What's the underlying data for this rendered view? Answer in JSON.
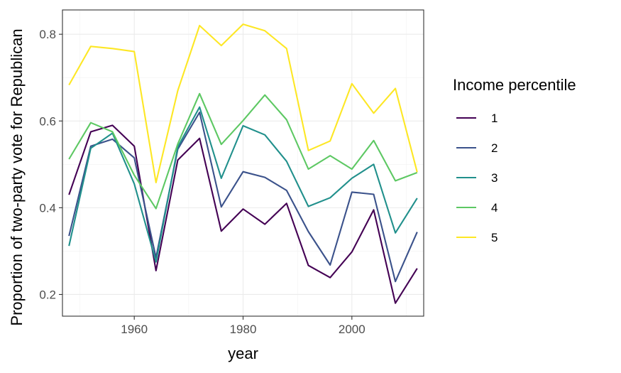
{
  "chart_data": {
    "type": "line",
    "title": "",
    "xlabel": "year",
    "ylabel": "Proportion of two-party vote for Republican",
    "x": [
      1948,
      1952,
      1956,
      1960,
      1964,
      1968,
      1972,
      1976,
      1980,
      1984,
      1988,
      1992,
      1996,
      2000,
      2004,
      2008,
      2012
    ],
    "xlim": [
      1946.8,
      2013.2
    ],
    "ylim": [
      0.15,
      0.856
    ],
    "x_ticks": [
      1960,
      1980,
      2000
    ],
    "x_tick_labels": [
      "1960",
      "1980",
      "2000"
    ],
    "y_ticks": [
      0.2,
      0.4,
      0.6,
      0.8
    ],
    "y_tick_labels": [
      "0.2",
      "0.4",
      "0.6",
      "0.8"
    ],
    "grid": true,
    "legend_title": "Income percentile",
    "legend_position": "right",
    "series": [
      {
        "name": "1",
        "color": "#440154",
        "values": [
          0.43,
          0.575,
          0.59,
          0.542,
          0.255,
          0.51,
          0.56,
          0.346,
          0.397,
          0.362,
          0.41,
          0.267,
          0.239,
          0.298,
          0.395,
          0.18,
          0.26
        ]
      },
      {
        "name": "2",
        "color": "#3B528B",
        "values": [
          0.335,
          0.542,
          0.558,
          0.515,
          0.285,
          0.535,
          0.62,
          0.402,
          0.483,
          0.47,
          0.44,
          0.345,
          0.268,
          0.436,
          0.431,
          0.23,
          0.344
        ]
      },
      {
        "name": "3",
        "color": "#21908C",
        "values": [
          0.312,
          0.537,
          0.572,
          0.455,
          0.275,
          0.54,
          0.632,
          0.468,
          0.589,
          0.568,
          0.507,
          0.403,
          0.423,
          0.468,
          0.5,
          0.342,
          0.422
        ]
      },
      {
        "name": "4",
        "color": "#5DC863",
        "values": [
          0.512,
          0.596,
          0.575,
          0.475,
          0.398,
          0.547,
          0.663,
          0.546,
          0.601,
          0.66,
          0.603,
          0.489,
          0.52,
          0.489,
          0.555,
          0.462,
          0.481
        ]
      },
      {
        "name": "5",
        "color": "#FDE725",
        "values": [
          0.683,
          0.772,
          0.767,
          0.76,
          0.458,
          0.67,
          0.82,
          0.774,
          0.823,
          0.808,
          0.767,
          0.532,
          0.554,
          0.686,
          0.618,
          0.675,
          0.482
        ]
      }
    ]
  }
}
